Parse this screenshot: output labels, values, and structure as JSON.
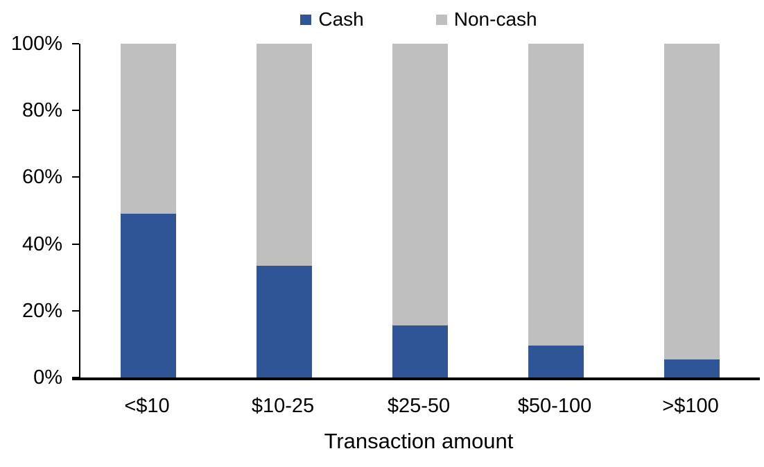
{
  "chart_data": {
    "type": "bar",
    "stacked": true,
    "orientation": "vertical",
    "title": "",
    "xlabel": "Transaction amount",
    "ylabel": "",
    "categories": [
      "<$10",
      "$10-25",
      "$25-50",
      "$50-100",
      ">$100"
    ],
    "series": [
      {
        "name": "Cash",
        "color": "#2F5597",
        "values": [
          49,
          33.5,
          15.5,
          9.5,
          5.5
        ]
      },
      {
        "name": "Non-cash",
        "color": "#BFBFBF",
        "values": [
          51,
          66.5,
          84.5,
          90.5,
          94.5
        ]
      }
    ],
    "ylim": [
      0,
      100
    ],
    "yticks": [
      "0%",
      "20%",
      "40%",
      "60%",
      "80%",
      "100%"
    ],
    "grid": false,
    "legend_position": "top",
    "axis_color": "#000000",
    "text_color": "#000000",
    "background_color": "#FFFFFF"
  }
}
